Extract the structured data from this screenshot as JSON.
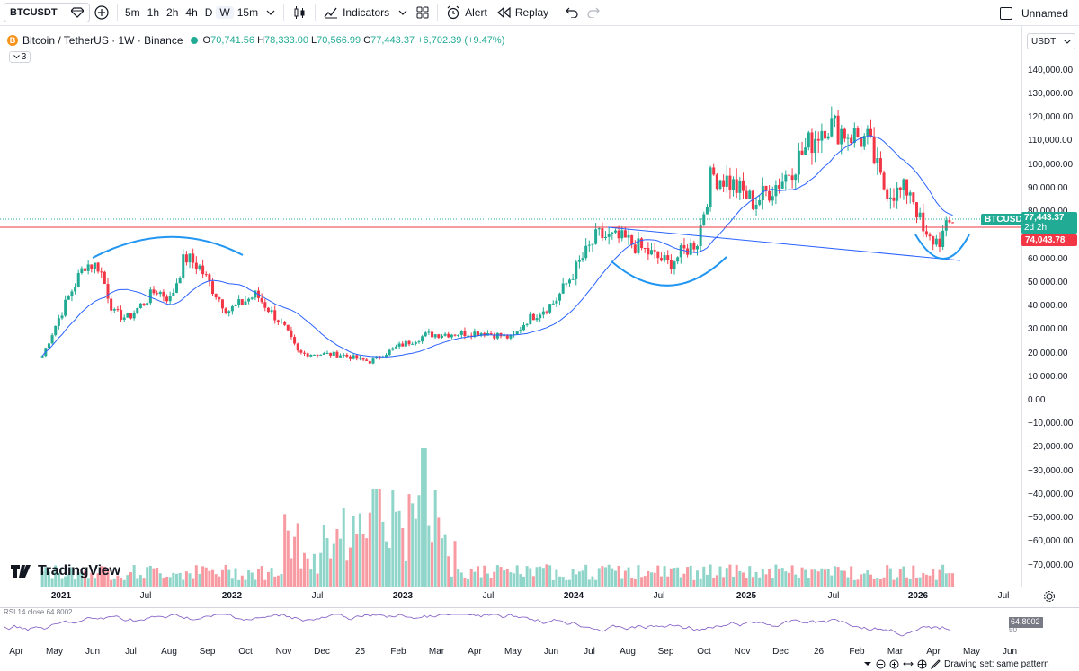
{
  "toolbar": {
    "symbol": "BTCUSDT",
    "intervals": [
      "5m",
      "1h",
      "2h",
      "4h",
      "D",
      "W",
      "15m"
    ],
    "active_interval": "W",
    "indicators_label": "Indicators",
    "alert_label": "Alert",
    "replay_label": "Replay",
    "layout_name": "Unnamed"
  },
  "legend": {
    "title": "Bitcoin / TetherUS · 1W · Binance",
    "coin_glyph": "B",
    "open_label": "O",
    "open": "70,741.56",
    "high_label": "H",
    "high": "78,333.00",
    "low_label": "L",
    "low": "70,566.99",
    "close_label": "C",
    "close": "77,443.37",
    "change": "+6,702.39 (+9.47%)",
    "collapsed_count": "3"
  },
  "price_axis": {
    "currency": "USDT",
    "labels": [
      "140,000.00",
      "130,000.00",
      "120,000.00",
      "110,000.00",
      "100,000.00",
      "90,000.00",
      "80,000.00",
      "70,000.00",
      "60,000.00",
      "50,000.00",
      "40,000.00",
      "30,000.00",
      "20,000.00",
      "10,000.00",
      "0.00",
      "−10,000.00",
      "−20,000.00",
      "−30,000.00",
      "−40,000.00",
      "−50,000.00",
      "−60,000.00",
      "−70,000.00"
    ],
    "current_symbol_tag": "BTCUSDT",
    "current_price": "77,443.37",
    "countdown": "2d 2h",
    "horizontal_line_price": "74,043.78"
  },
  "time_axis": {
    "labels": [
      {
        "text": "2021",
        "bold": true
      },
      {
        "text": "Jul",
        "bold": false
      },
      {
        "text": "2022",
        "bold": true
      },
      {
        "text": "Jul",
        "bold": false
      },
      {
        "text": "2023",
        "bold": true
      },
      {
        "text": "Jul",
        "bold": false
      },
      {
        "text": "2024",
        "bold": true
      },
      {
        "text": "Jul",
        "bold": false
      },
      {
        "text": "2025",
        "bold": true
      },
      {
        "text": "Jul",
        "bold": false
      },
      {
        "text": "2026",
        "bold": true
      },
      {
        "text": "Jul",
        "bold": false
      }
    ]
  },
  "watermark": "TradingView",
  "rsi": {
    "label": "RSI 14 close 64.8002",
    "value": "64.8002",
    "secondary_label": "50"
  },
  "secondary_axis": {
    "labels": [
      "Apr",
      "May",
      "Jun",
      "Jul",
      "Aug",
      "Sep",
      "Oct",
      "Nov",
      "Dec",
      "25",
      "Feb",
      "Mar",
      "Apr",
      "May",
      "Jun",
      "Jul",
      "Aug",
      "Sep",
      "Oct",
      "Nov",
      "Dec",
      "26",
      "Feb",
      "Mar",
      "Apr",
      "May",
      "Jun"
    ]
  },
  "bottom_bar": {
    "drawing_set": "Drawing set: same pattern"
  },
  "colors": {
    "up": "#22ab94",
    "down": "#f23645",
    "ma": "#2962ff",
    "annotation": "#2196f3",
    "hline": "#f23645"
  },
  "chart_data": {
    "type": "candlestick",
    "title": "Bitcoin / TetherUS · 1W · Binance",
    "ylim": [
      -80000,
      145000
    ],
    "ma_series_name": "Moving average",
    "weekly_close_path": [
      [
        "2020-12",
        19000
      ],
      [
        "2021-01",
        33000
      ],
      [
        "2021-02",
        46000
      ],
      [
        "2021-03",
        58000
      ],
      [
        "2021-04",
        57000
      ],
      [
        "2021-05",
        37000
      ],
      [
        "2021-06",
        35000
      ],
      [
        "2021-07",
        41000
      ],
      [
        "2021-08",
        47000
      ],
      [
        "2021-09",
        43000
      ],
      [
        "2021-10",
        61000
      ],
      [
        "2021-11",
        57000
      ],
      [
        "2021-12",
        47000
      ],
      [
        "2022-01",
        38000
      ],
      [
        "2022-03",
        45000
      ],
      [
        "2022-05",
        31000
      ],
      [
        "2022-06",
        20000
      ],
      [
        "2022-09",
        19500
      ],
      [
        "2022-11",
        16500
      ],
      [
        "2023-01",
        23000
      ],
      [
        "2023-03",
        28000
      ],
      [
        "2023-07",
        29000
      ],
      [
        "2023-09",
        26500
      ],
      [
        "2023-10",
        34000
      ],
      [
        "2023-12",
        42000
      ],
      [
        "2024-02",
        61000
      ],
      [
        "2024-03",
        70000
      ],
      [
        "2024-05",
        68000
      ],
      [
        "2024-08",
        58000
      ],
      [
        "2024-10",
        68000
      ],
      [
        "2024-11",
        96000
      ],
      [
        "2024-12",
        94000
      ],
      [
        "2025-02",
        84000
      ],
      [
        "2025-04",
        94000
      ],
      [
        "2025-07",
        118000
      ],
      [
        "2025-08",
        115000
      ],
      [
        "2025-10",
        110000
      ],
      [
        "2025-11",
        91000
      ],
      [
        "2025-12",
        88000
      ],
      [
        "2026-01",
        90000
      ],
      [
        "2026-02",
        68000
      ],
      [
        "2026-03",
        68000
      ],
      [
        "2026-04",
        77443
      ]
    ],
    "volume_relative": "Volume spikes near late 2022 – early 2023"
  }
}
